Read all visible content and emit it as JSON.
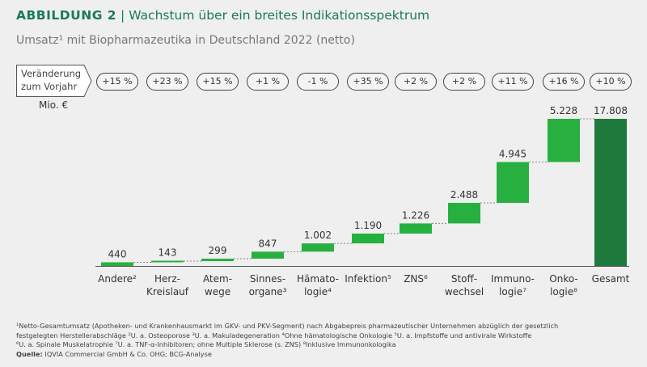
{
  "header": {
    "label": "ABBILDUNG 2",
    "separator": "|",
    "title": "Wachstum über ein breites Indikationsspektrum"
  },
  "subtitle": "Umsatz¹ mit Biopharmazeutika in Deutschland 2022 (netto)",
  "change_label": [
    "Veränderung",
    "zum Vorjahr"
  ],
  "changes": [
    "+15 %",
    "+23 %",
    "+15 %",
    "+1 %",
    "-1 %",
    "+35 %",
    "+2 %",
    "+2 %",
    "+11 %",
    "+16 %",
    "+10 %"
  ],
  "unit": "Mio. €",
  "colors": {
    "bar": "#27b040",
    "total": "#1e7a3c",
    "title": "#1a7a5a"
  },
  "chart_data": {
    "type": "waterfall",
    "categories": [
      [
        "Andere²"
      ],
      [
        "Herz-",
        "Kreislauf"
      ],
      [
        "Atem-",
        "wege"
      ],
      [
        "Sinnes-",
        "organe³"
      ],
      [
        "Hämato-",
        "logie⁴"
      ],
      [
        "Infektion⁵"
      ],
      [
        "ZNS⁶"
      ],
      [
        "Stoff-",
        "wechsel"
      ],
      [
        "Immuno-",
        "logie⁷"
      ],
      [
        "Onko-",
        "logie⁸"
      ],
      [
        "Gesamt"
      ]
    ],
    "values": [
      440,
      143,
      299,
      847,
      1002,
      1190,
      1226,
      2488,
      4945,
      5228,
      17808
    ],
    "value_labels": [
      "440",
      "143",
      "299",
      "847",
      "1.002",
      "1.190",
      "1.226",
      "2.488",
      "4.945",
      "5.228",
      "17.808"
    ],
    "total_index": 10,
    "ylabel": "Mio. €",
    "grid": false
  },
  "footnotes": {
    "lines": [
      "¹Netto-Gesamtumsatz (Apotheken- und Krankenhausmarkt im GKV- und PKV-Segment) nach Abgabepreis pharmazeutischer Unternehmen abzüglich der gesetzlich",
      "festgelegten Herstellerabschläge   ²U. a. Osteoporose   ³U. a. Makuladegeneration   ⁴Ohne hämatologische Onkologie   ⁵U. a. Impfstoffe und antivirale Wirkstoffe",
      "⁶U. a. Spinale Muskelatrophie   ⁷U. a. TNF-α-Inhibitoren; ohne Multiple Sklerose (s. ZNS)   ⁸Inklusive Immunonkologika"
    ],
    "source_label": "Quelle:",
    "source": " IQVIA Commercial GmbH & Co. OHG; BCG-Analyse"
  }
}
